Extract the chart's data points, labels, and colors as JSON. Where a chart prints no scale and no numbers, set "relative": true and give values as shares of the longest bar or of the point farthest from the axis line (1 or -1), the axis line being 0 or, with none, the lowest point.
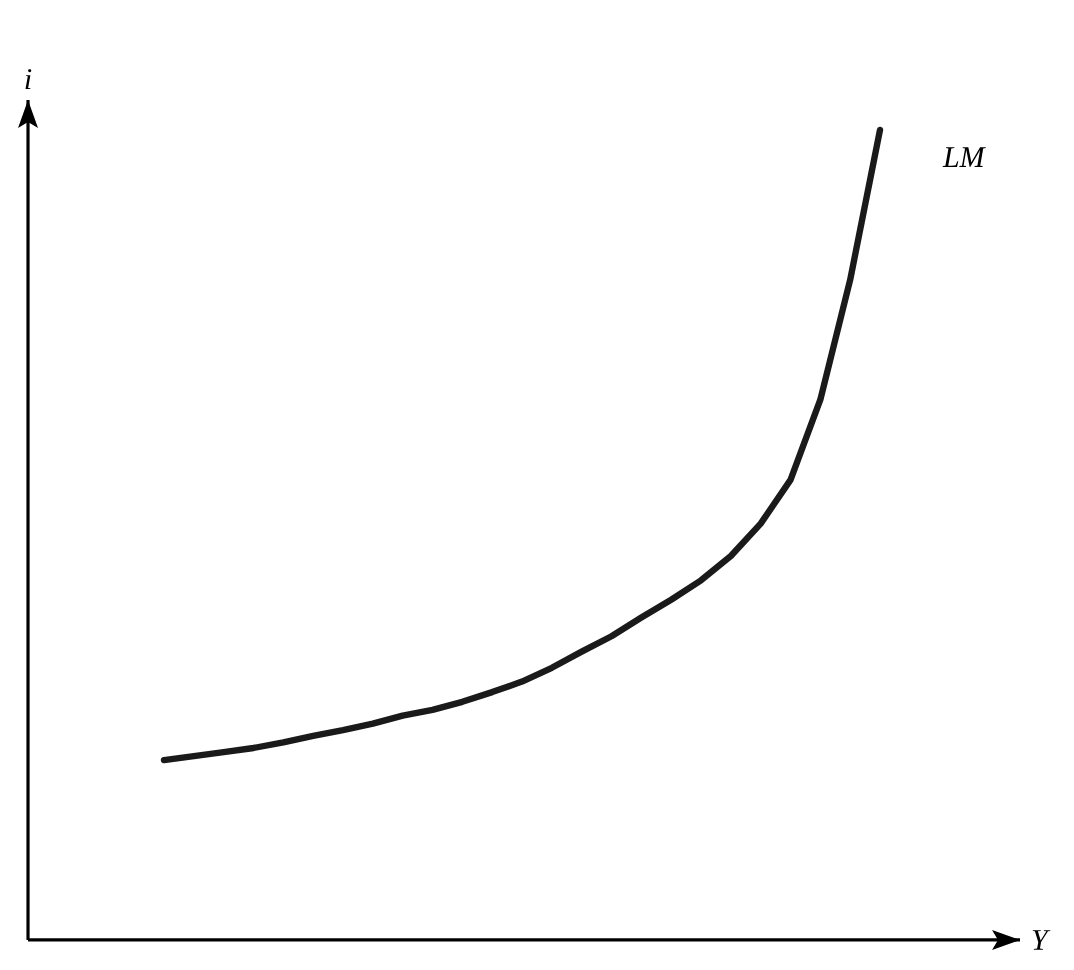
{
  "chart_data": {
    "type": "line",
    "relative": true,
    "xlabel": "Y",
    "ylabel": "i",
    "categories": [
      null,
      null,
      null,
      null,
      null,
      null,
      null,
      null,
      null,
      null,
      null,
      null,
      null,
      null,
      null,
      null,
      null,
      null,
      null,
      null,
      null,
      null,
      null,
      null,
      null
    ],
    "series": [
      {
        "name": "LM",
        "color": "#1a1a1a",
        "values": [
          0.222,
          0.227,
          0.232,
          0.237,
          0.244,
          0.252,
          0.259,
          0.267,
          0.277,
          0.284,
          0.294,
          0.306,
          0.319,
          0.336,
          0.356,
          0.375,
          0.398,
          0.42,
          0.444,
          0.474,
          0.514,
          0.568,
          0.667,
          0.815,
          1
        ]
      }
    ],
    "marker": "none",
    "line_style": "solid"
  }
}
